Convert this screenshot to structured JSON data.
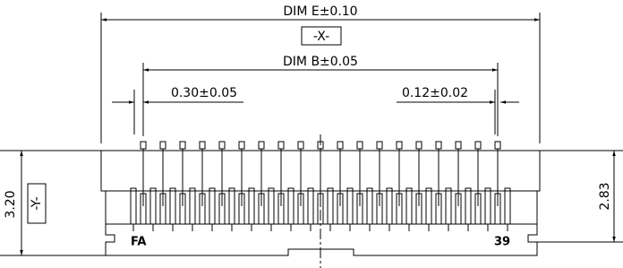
{
  "dimensions": {
    "dim_e": "DIM E±0.10",
    "datum_x": "-X-",
    "dim_b": "DIM B±0.05",
    "pitch": "0.30±0.05",
    "pin_width": "0.12±0.02",
    "height": "3.20",
    "datum_y": "-Y-",
    "body_height": "2.83"
  },
  "markings": {
    "first_pin": "FA",
    "last_pin": "39"
  }
}
